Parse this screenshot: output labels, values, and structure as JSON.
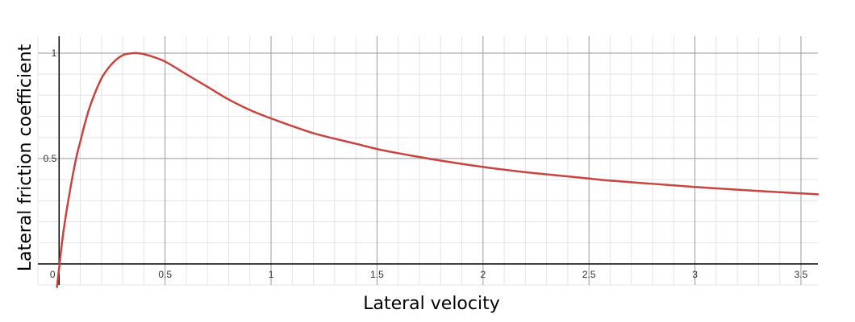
{
  "chart_data": {
    "type": "line",
    "title": "",
    "xlabel": "Lateral velocity",
    "ylabel": "Lateral friction coefficient",
    "xlim": [
      -0.1,
      3.58
    ],
    "ylim": [
      -0.1,
      1.08
    ],
    "grid": true,
    "x_ticks": [
      {
        "value": 0,
        "label": "0"
      },
      {
        "value": 0.5,
        "label": "0.5"
      },
      {
        "value": 1,
        "label": "1"
      },
      {
        "value": 1.5,
        "label": "1.5"
      },
      {
        "value": 2,
        "label": "2"
      },
      {
        "value": 2.5,
        "label": "2.5"
      },
      {
        "value": 3,
        "label": "3"
      },
      {
        "value": 3.5,
        "label": "3.5"
      }
    ],
    "y_ticks": [
      {
        "value": 0.5,
        "label": "0.5"
      },
      {
        "value": 1,
        "label": "1"
      }
    ],
    "series": [
      {
        "color": "#c74440",
        "x": [
          -0.01,
          0,
          0.02,
          0.05,
          0.08,
          0.1,
          0.12,
          0.15,
          0.2,
          0.25,
          0.3,
          0.35,
          0.37,
          0.4,
          0.45,
          0.5,
          0.6,
          0.7,
          0.8,
          0.9,
          1.0,
          1.2,
          1.4,
          1.5,
          1.6,
          1.8,
          2.0,
          2.2,
          2.4,
          2.5,
          2.6,
          2.8,
          3.0,
          3.2,
          3.4,
          3.58
        ],
        "y": [
          -0.11,
          -0.02,
          0.15,
          0.34,
          0.5,
          0.58,
          0.66,
          0.76,
          0.88,
          0.95,
          0.99,
          1.0,
          1.0,
          0.995,
          0.98,
          0.96,
          0.9,
          0.84,
          0.78,
          0.73,
          0.69,
          0.62,
          0.57,
          0.545,
          0.525,
          0.49,
          0.46,
          0.435,
          0.415,
          0.405,
          0.395,
          0.38,
          0.365,
          0.352,
          0.34,
          0.33
        ]
      }
    ]
  }
}
